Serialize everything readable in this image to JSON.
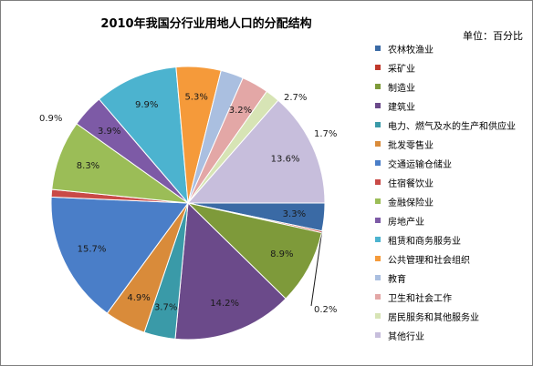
{
  "chart_data": {
    "type": "pie",
    "title": "2010年我国分行业用地人口的分配结构",
    "unit": "单位：百分比",
    "series": [
      {
        "name": "农林牧渔业",
        "value": 3.3,
        "label": "3.3%",
        "color": "#3a6aa5"
      },
      {
        "name": "采矿业",
        "value": 0.2,
        "label": "0.2%",
        "color": "#c0392b"
      },
      {
        "name": "制造业",
        "value": 8.9,
        "label": "8.9%",
        "color": "#7e9a3a"
      },
      {
        "name": "建筑业",
        "value": 14.2,
        "label": "14.2%",
        "color": "#6b4a8a"
      },
      {
        "name": "电力、燃气及水的生产和供应业",
        "value": 3.7,
        "label": "3.7%",
        "color": "#3a9aa8"
      },
      {
        "name": "批发零售业",
        "value": 4.9,
        "label": "4.9%",
        "color": "#d98b3a"
      },
      {
        "name": "交通运输仓储业",
        "value": 15.7,
        "label": "15.7%",
        "color": "#4a7ec8"
      },
      {
        "name": "住宿餐饮业",
        "value": 0.9,
        "label": "0.9%",
        "color": "#c94a47"
      },
      {
        "name": "金融保险业",
        "value": 8.3,
        "label": "8.3%",
        "color": "#9bbd57"
      },
      {
        "name": "房地产业",
        "value": 3.9,
        "label": "3.9%",
        "color": "#7d5aa6"
      },
      {
        "name": "租赁和商务服务业",
        "value": 9.9,
        "label": "9.9%",
        "color": "#4cb3cf"
      },
      {
        "name": "公共管理和社会组织",
        "value": 5.3,
        "label": "5.3%",
        "color": "#f59a3a"
      },
      {
        "name": "教育",
        "value": 2.7,
        "label": "2.7%",
        "color": "#aabfe0"
      },
      {
        "name": "卫生和社会工作",
        "value": 3.2,
        "label": "3.2%",
        "color": "#e3a7a6"
      },
      {
        "name": "居民服务和其他服务业",
        "value": 1.7,
        "label": "1.7%",
        "color": "#d7e4b5"
      },
      {
        "name": "其他行业",
        "value": 13.6,
        "label": "13.6%",
        "color": "#c7bedc"
      }
    ]
  }
}
